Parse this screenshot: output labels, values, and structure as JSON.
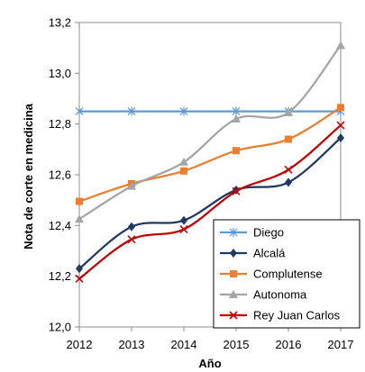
{
  "chart_data": {
    "type": "line",
    "xlabel": "Año",
    "ylabel": "Nota de corte en medicina",
    "x": [
      2012,
      2013,
      2014,
      2015,
      2016,
      2017
    ],
    "ylim": [
      12.0,
      13.2
    ],
    "yticks": [
      "12,0",
      "12,2",
      "12,4",
      "12,6",
      "12,8",
      "13,0",
      "13,2"
    ],
    "xticks": [
      "2012",
      "2013",
      "2014",
      "2015",
      "2016",
      "2017"
    ],
    "grid": false,
    "legend_position": "bottom-right",
    "series": [
      {
        "name": "Diego",
        "values": [
          12.85,
          12.85,
          12.85,
          12.85,
          12.85,
          12.85
        ],
        "color": "#5b9bd5",
        "marker": "asterisk",
        "smooth": false
      },
      {
        "name": "Alcalá",
        "values": [
          12.23,
          12.395,
          12.42,
          12.54,
          12.57,
          12.745
        ],
        "color": "#1f3864",
        "marker": "diamond",
        "smooth": true
      },
      {
        "name": "Complutense",
        "values": [
          12.495,
          12.565,
          12.615,
          12.695,
          12.74,
          12.865
        ],
        "color": "#ed7d31",
        "marker": "square",
        "smooth": true
      },
      {
        "name": "Autonoma",
        "values": [
          12.425,
          12.555,
          12.65,
          12.82,
          12.845,
          13.11
        ],
        "color": "#a5a5a5",
        "marker": "triangle",
        "smooth": true
      },
      {
        "name": "Rey Juan Carlos",
        "values": [
          12.19,
          12.345,
          12.385,
          12.535,
          12.62,
          12.795
        ],
        "color": "#c00000",
        "marker": "x",
        "smooth": true
      }
    ]
  }
}
